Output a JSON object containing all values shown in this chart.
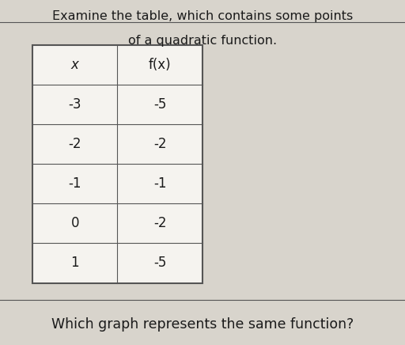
{
  "title_line1": "Examine the table, which contains some points",
  "title_line2": "of a quadratic function.",
  "col_headers": [
    "x",
    "f(x)"
  ],
  "rows": [
    [
      "-3",
      "-5"
    ],
    [
      "-2",
      "-2"
    ],
    [
      "-1",
      "-1"
    ],
    [
      "0",
      "-2"
    ],
    [
      "1",
      "-5"
    ]
  ],
  "bottom_text": "Which graph represents the same function?",
  "background_color": "#d8d4cc",
  "table_bg": "#f5f3ef",
  "text_color": "#1a1a1a",
  "line_color": "#555555"
}
